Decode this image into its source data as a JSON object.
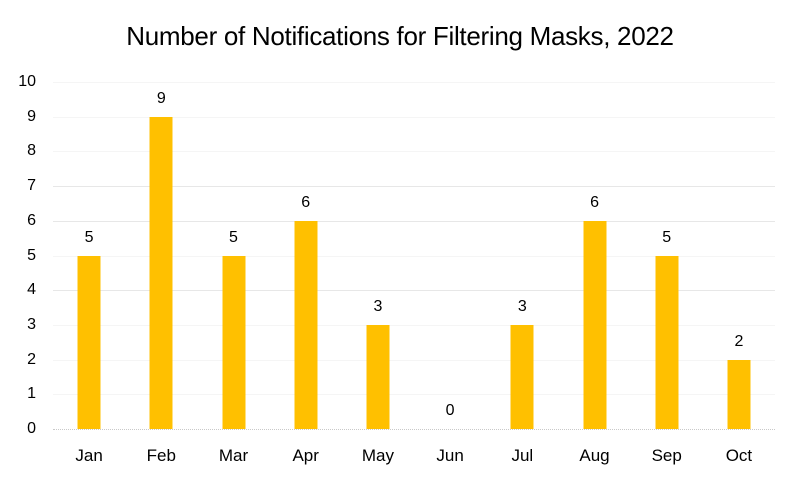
{
  "chart_data": {
    "type": "bar",
    "title": "Number of Notifications for Filtering Masks, 2022",
    "categories": [
      "Jan",
      "Feb",
      "Mar",
      "Apr",
      "May",
      "Jun",
      "Jul",
      "Aug",
      "Sep",
      "Oct"
    ],
    "values": [
      5,
      9,
      5,
      6,
      3,
      0,
      3,
      6,
      5,
      2
    ],
    "data_labels": [
      "5",
      "9",
      "5",
      "6",
      "3",
      "0",
      "3",
      "6",
      "5",
      "2"
    ],
    "xlabel": "",
    "ylabel": "",
    "ylim": [
      0,
      10
    ],
    "yticks": [
      0,
      1,
      2,
      3,
      4,
      5,
      6,
      7,
      8,
      9,
      10
    ],
    "grid": "horizontal-faint",
    "visible_gridline_levels": [
      4,
      6,
      7
    ],
    "legend": "none",
    "bar_color": "#FFC000",
    "text_color": "#000000"
  }
}
